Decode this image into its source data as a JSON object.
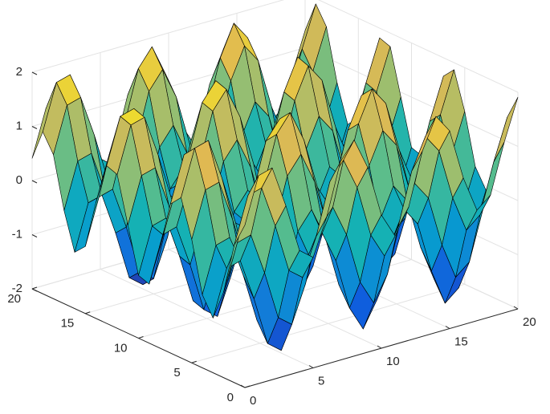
{
  "chart_data": {
    "type": "surface",
    "x": [
      0,
      1,
      2,
      3,
      4,
      5,
      6,
      7,
      8,
      9,
      10,
      11,
      12,
      13,
      14,
      15,
      16,
      17,
      18,
      19,
      20
    ],
    "y": [
      0,
      1,
      2,
      3,
      4,
      5,
      6,
      7,
      8,
      9,
      10,
      11,
      12,
      13,
      14,
      15,
      16,
      17,
      18,
      19,
      20
    ],
    "z": [
      [
        1,
        1.84,
        1.91,
        1.14,
        0.24,
        0.04,
        0.72,
        1.66,
        1.99,
        1.41,
        0.46,
        0,
        0.46,
        1.42,
        1.99,
        1.65,
        0.71,
        0.04,
        0.25,
        1.15,
        1.91
      ],
      [
        0.54,
        1.38,
        1.45,
        0.68,
        -0.22,
        -0.42,
        0.26,
        1.2,
        1.53,
        0.95,
        0,
        -0.46,
        0,
        0.96,
        1.53,
        1.19,
        0.25,
        -0.42,
        -0.21,
        0.69,
        1.45
      ],
      [
        -0.42,
        0.42,
        0.49,
        -0.28,
        -1.18,
        -1.38,
        -0.7,
        0.24,
        0.57,
        -0.01,
        -0.96,
        -1.42,
        -0.96,
        0,
        0.57,
        0.23,
        -0.71,
        -1.38,
        -1.17,
        -0.27,
        0.49
      ],
      [
        -0.99,
        -0.15,
        -0.08,
        -0.85,
        -1.75,
        -1.95,
        -1.27,
        -0.33,
        0,
        -0.58,
        -1.53,
        -1.99,
        -1.53,
        -0.57,
        0,
        -0.34,
        -1.28,
        -1.95,
        -1.74,
        -0.84,
        -0.08
      ],
      [
        -0.65,
        0.19,
        0.26,
        -0.51,
        -1.41,
        -1.61,
        -0.93,
        0.01,
        0.34,
        -0.24,
        -1.19,
        -1.65,
        -1.19,
        -0.23,
        0.34,
        0,
        -0.94,
        -1.61,
        -1.4,
        -0.5,
        0.26
      ],
      [
        0.28,
        1.12,
        1.19,
        0.42,
        -0.48,
        -0.68,
        0,
        0.94,
        1.27,
        0.69,
        -0.26,
        -0.72,
        -0.26,
        0.7,
        1.27,
        0.93,
        -0.01,
        -0.68,
        -0.47,
        0.43,
        1.19
      ],
      [
        0.96,
        1.8,
        1.87,
        1.1,
        0.2,
        0,
        0.68,
        1.62,
        1.95,
        1.37,
        0.42,
        -0.04,
        0.42,
        1.38,
        1.95,
        1.61,
        0.67,
        0,
        0.21,
        1.11,
        1.87
      ],
      [
        0.75,
        1.59,
        1.66,
        0.89,
        -0.01,
        -0.21,
        0.47,
        1.41,
        1.74,
        1.16,
        0.21,
        -0.25,
        0.21,
        1.17,
        1.74,
        1.4,
        0.46,
        -0.21,
        0,
        0.9,
        1.66
      ],
      [
        -0.15,
        0.69,
        0.76,
        -0.01,
        -0.91,
        -1.11,
        -0.43,
        0.51,
        0.84,
        0.26,
        -0.69,
        -1.15,
        -0.69,
        0.27,
        0.84,
        0.5,
        -0.44,
        -1.11,
        -0.9,
        0,
        0.76
      ],
      [
        -0.91,
        -0.07,
        0,
        -0.77,
        -1.67,
        -1.87,
        -1.19,
        -0.25,
        0.08,
        -0.5,
        -1.45,
        -1.91,
        -1.45,
        -0.49,
        0.08,
        -0.26,
        -1.2,
        -1.87,
        -1.66,
        -0.76,
        0
      ],
      [
        -0.84,
        0,
        0.07,
        -0.7,
        -1.6,
        -1.8,
        -1.12,
        -0.18,
        0.15,
        -0.43,
        -1.38,
        -1.84,
        -1.38,
        -0.42,
        0.15,
        -0.19,
        -1.13,
        -1.8,
        -1.59,
        -0.69,
        0.07
      ],
      [
        0,
        0.84,
        0.91,
        0.14,
        -0.76,
        -0.96,
        -0.28,
        0.66,
        0.99,
        0.41,
        -0.54,
        -1,
        -0.54,
        0.42,
        0.99,
        0.65,
        -0.29,
        -0.96,
        -0.75,
        0.15,
        0.91
      ],
      [
        0.84,
        1.68,
        1.75,
        0.98,
        0.08,
        -0.12,
        0.56,
        1.5,
        1.83,
        1.25,
        0.3,
        -0.16,
        0.3,
        1.26,
        1.83,
        1.49,
        0.55,
        -0.12,
        0.09,
        0.99,
        1.75
      ],
      [
        0.91,
        1.75,
        1.82,
        1.05,
        0.15,
        -0.05,
        0.63,
        1.57,
        1.9,
        1.32,
        0.37,
        -0.09,
        0.37,
        1.33,
        1.9,
        1.56,
        0.62,
        -0.05,
        0.16,
        1.06,
        1.82
      ],
      [
        0.14,
        0.98,
        1.05,
        0.28,
        -0.62,
        -0.82,
        -0.14,
        0.8,
        1.13,
        0.55,
        -0.4,
        -0.86,
        -0.4,
        0.56,
        1.13,
        0.79,
        -0.15,
        -0.82,
        -0.61,
        0.29,
        1.05
      ],
      [
        -0.76,
        0.08,
        0.15,
        -0.62,
        -1.52,
        -1.72,
        -1.04,
        -0.1,
        0.23,
        -0.35,
        -1.3,
        -1.76,
        -1.3,
        -0.34,
        0.23,
        -0.11,
        -1.05,
        -1.72,
        -1.51,
        -0.61,
        0.15
      ],
      [
        -0.96,
        -0.12,
        -0.05,
        -0.82,
        -1.72,
        -1.92,
        -1.24,
        -0.3,
        0.03,
        -0.55,
        -1.5,
        -1.96,
        -1.5,
        -0.54,
        0.03,
        -0.31,
        -1.25,
        -1.92,
        -1.71,
        -0.81,
        -0.05
      ],
      [
        -0.28,
        0.56,
        0.63,
        -0.14,
        -1.04,
        -1.24,
        -0.56,
        0.38,
        0.71,
        0.13,
        -0.82,
        -1.28,
        -0.82,
        0.14,
        0.71,
        0.37,
        -0.57,
        -1.24,
        -1.03,
        -0.13,
        0.63
      ],
      [
        0.66,
        1.5,
        1.57,
        0.8,
        -0.1,
        -0.3,
        0.38,
        1.32,
        1.65,
        1.07,
        0.12,
        -0.34,
        0.12,
        1.08,
        1.65,
        1.31,
        0.37,
        -0.3,
        -0.09,
        0.81,
        1.57
      ],
      [
        0.99,
        1.83,
        1.9,
        1.13,
        0.23,
        0.03,
        0.71,
        1.65,
        1.98,
        1.4,
        0.45,
        -0.01,
        0.45,
        1.41,
        1.98,
        1.64,
        0.7,
        0.03,
        0.24,
        1.14,
        1.9
      ],
      [
        0.41,
        1.25,
        1.32,
        0.55,
        -0.35,
        -0.55,
        0.13,
        1.07,
        1.4,
        0.82,
        -0.13,
        -0.59,
        -0.13,
        0.83,
        1.4,
        1.06,
        0.12,
        -0.55,
        -0.34,
        0.56,
        1.32
      ]
    ],
    "xlim": [
      0,
      20
    ],
    "ylim": [
      0,
      20
    ],
    "zlim": [
      -2,
      2
    ],
    "xticks": [
      0,
      5,
      10,
      15,
      20
    ],
    "yticks": [
      0,
      5,
      10,
      15,
      20
    ],
    "zticks": [
      -2,
      -1,
      0,
      1,
      2
    ],
    "grid": true,
    "colormap": [
      "#352a87",
      "#0f5cdd",
      "#127dd8",
      "#079ccf",
      "#15b1b4",
      "#59bd8c",
      "#a5be6b",
      "#e1b952",
      "#f9fb0e"
    ],
    "edge_color": "#000000"
  }
}
